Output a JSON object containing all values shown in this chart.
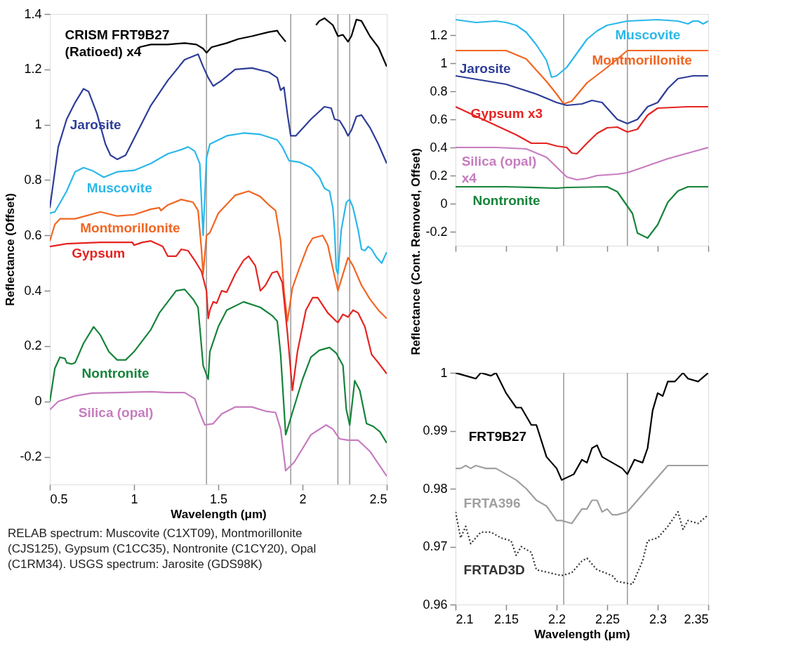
{
  "chart_data": [
    {
      "type": "line",
      "xlabel": "Wavelength (μm)",
      "ylabel": "Reflectance (Offset)",
      "xlim": [
        0.5,
        2.5
      ],
      "ylim": [
        -0.3,
        1.4
      ],
      "xticks": [
        0.5,
        1,
        1.5,
        2,
        2.5
      ],
      "yticks": [
        -0.2,
        0,
        0.2,
        0.4,
        0.6,
        0.8,
        1,
        1.2,
        1.4
      ],
      "grid": false,
      "legend": false,
      "marker": "none",
      "line_style": "solid",
      "ref_lines": [
        {
          "axis": "x",
          "value": 1.43,
          "color": "#999999"
        },
        {
          "axis": "x",
          "value": 1.93,
          "color": "#999999"
        },
        {
          "axis": "x",
          "value": 2.21,
          "color": "#999999"
        },
        {
          "axis": "x",
          "value": 2.28,
          "color": "#999999"
        }
      ],
      "annotations": [
        "RELAB spectrum: Muscovite (C1XT09), Montmorillonite (CJS125), Gypsum (C1CC35), Nontronite (C1CY20), Opal (C1RM34). USGS spectrum: Jarosite (GDS98K)"
      ],
      "series": [
        {
          "name": "CRISM FRT9B27 (Ratioed) x4",
          "color": "#000000",
          "x": [
            1.03,
            1.1,
            1.2,
            1.3,
            1.37,
            1.41,
            1.43,
            1.46,
            1.55,
            1.62,
            1.7,
            1.8,
            1.85,
            1.86,
            1.9,
            2.0,
            2.08,
            2.1,
            2.13,
            2.18,
            2.21,
            2.24,
            2.27,
            2.29,
            2.32,
            2.35,
            2.4,
            2.45,
            2.5
          ],
          "values": [
            1.28,
            1.29,
            1.29,
            1.295,
            1.29,
            1.275,
            1.26,
            1.28,
            1.295,
            1.31,
            1.32,
            1.335,
            1.34,
            1.33,
            1.3,
            null,
            1.36,
            1.375,
            1.385,
            1.36,
            1.32,
            1.325,
            1.3,
            1.32,
            1.38,
            1.375,
            1.32,
            1.28,
            1.21
          ]
        },
        {
          "name": "Jarosite",
          "color": "#2e3d98",
          "x": [
            0.5,
            0.55,
            0.6,
            0.65,
            0.7,
            0.73,
            0.78,
            0.83,
            0.86,
            0.9,
            0.95,
            1.0,
            1.1,
            1.2,
            1.3,
            1.38,
            1.41,
            1.44,
            1.47,
            1.52,
            1.6,
            1.7,
            1.8,
            1.85,
            1.87,
            1.89,
            1.91,
            1.93,
            1.96,
            2.05,
            2.13,
            2.17,
            2.19,
            2.22,
            2.25,
            2.27,
            2.29,
            2.32,
            2.35,
            2.4,
            2.45,
            2.5
          ],
          "values": [
            0.7,
            0.92,
            1.02,
            1.08,
            1.13,
            1.12,
            1.04,
            0.93,
            0.89,
            0.875,
            0.89,
            0.95,
            1.07,
            1.16,
            1.235,
            1.255,
            1.21,
            1.17,
            1.14,
            1.16,
            1.2,
            1.205,
            1.19,
            1.17,
            1.125,
            1.135,
            1.04,
            0.96,
            0.96,
            1.02,
            1.065,
            1.06,
            1.02,
            1.015,
            0.985,
            0.96,
            0.98,
            1.03,
            1.035,
            0.99,
            0.93,
            0.86
          ]
        },
        {
          "name": "Muscovite",
          "color": "#2bb8ea",
          "x": [
            0.5,
            0.53,
            0.6,
            0.65,
            0.7,
            0.75,
            0.82,
            0.9,
            1.0,
            1.1,
            1.2,
            1.28,
            1.32,
            1.36,
            1.39,
            1.41,
            1.43,
            1.45,
            1.55,
            1.65,
            1.75,
            1.85,
            1.88,
            1.92,
            1.98,
            2.05,
            2.1,
            2.13,
            2.16,
            2.18,
            2.19,
            2.2,
            2.21,
            2.23,
            2.26,
            2.28,
            2.3,
            2.33,
            2.35,
            2.37,
            2.39,
            2.41,
            2.44,
            2.47,
            2.5
          ],
          "values": [
            0.68,
            0.685,
            0.76,
            0.83,
            0.845,
            0.835,
            0.81,
            0.83,
            0.835,
            0.86,
            0.895,
            0.91,
            0.92,
            0.905,
            0.86,
            0.6,
            0.88,
            0.93,
            0.96,
            0.97,
            0.965,
            0.945,
            0.92,
            0.87,
            0.865,
            0.845,
            0.81,
            0.77,
            0.76,
            0.7,
            0.62,
            0.48,
            0.46,
            0.62,
            0.72,
            0.73,
            0.7,
            0.62,
            0.55,
            0.545,
            0.56,
            0.55,
            0.52,
            0.5,
            0.54
          ]
        },
        {
          "name": "Montmorillonite",
          "color": "#f26522",
          "x": [
            0.5,
            0.53,
            0.56,
            0.65,
            0.8,
            0.9,
            1.0,
            1.1,
            1.15,
            1.16,
            1.2,
            1.28,
            1.35,
            1.38,
            1.4,
            1.41,
            1.43,
            1.45,
            1.5,
            1.6,
            1.68,
            1.75,
            1.8,
            1.84,
            1.87,
            1.89,
            1.91,
            1.94,
            1.98,
            2.03,
            2.06,
            2.12,
            2.15,
            2.18,
            2.21,
            2.23,
            2.27,
            2.3,
            2.35,
            2.4,
            2.45,
            2.5
          ],
          "values": [
            0.58,
            0.64,
            0.66,
            0.66,
            0.685,
            0.67,
            0.675,
            0.695,
            0.7,
            0.69,
            0.71,
            0.73,
            0.72,
            0.69,
            0.55,
            0.46,
            0.6,
            0.61,
            0.68,
            0.745,
            0.76,
            0.74,
            0.71,
            0.69,
            0.58,
            0.4,
            0.29,
            0.41,
            0.48,
            0.56,
            0.59,
            0.6,
            0.565,
            0.48,
            0.4,
            0.44,
            0.52,
            0.49,
            0.42,
            0.37,
            0.33,
            0.3
          ]
        },
        {
          "name": "Gypsum",
          "color": "#e52421",
          "x": [
            0.5,
            0.6,
            0.8,
            0.9,
            0.99,
            1.0,
            1.05,
            1.1,
            1.17,
            1.2,
            1.25,
            1.28,
            1.32,
            1.36,
            1.4,
            1.43,
            1.44,
            1.45,
            1.47,
            1.49,
            1.52,
            1.55,
            1.6,
            1.65,
            1.68,
            1.72,
            1.75,
            1.78,
            1.82,
            1.85,
            1.88,
            1.91,
            1.94,
            1.97,
            2.02,
            2.06,
            2.09,
            2.15,
            2.2,
            2.21,
            2.24,
            2.27,
            2.3,
            2.33,
            2.37,
            2.41,
            2.45,
            2.5
          ],
          "values": [
            0.56,
            0.57,
            0.575,
            0.575,
            0.575,
            0.565,
            0.575,
            0.58,
            0.56,
            0.525,
            0.525,
            0.55,
            0.545,
            0.51,
            0.47,
            0.4,
            0.3,
            0.33,
            0.36,
            0.355,
            0.4,
            0.395,
            0.46,
            0.51,
            0.525,
            0.49,
            0.4,
            0.42,
            0.465,
            0.47,
            0.43,
            0.25,
            0.04,
            0.18,
            0.33,
            0.375,
            0.375,
            0.32,
            0.29,
            0.285,
            0.315,
            0.305,
            0.33,
            0.32,
            0.27,
            0.17,
            0.14,
            0.1
          ]
        },
        {
          "name": "Nontronite",
          "color": "#16843b",
          "x": [
            0.5,
            0.53,
            0.56,
            0.59,
            0.6,
            0.63,
            0.65,
            0.7,
            0.76,
            0.8,
            0.85,
            0.9,
            0.95,
            1.0,
            1.1,
            1.15,
            1.2,
            1.25,
            1.3,
            1.35,
            1.38,
            1.4,
            1.41,
            1.44,
            1.45,
            1.5,
            1.55,
            1.65,
            1.75,
            1.82,
            1.85,
            1.87,
            1.9,
            1.94,
            2.0,
            2.05,
            2.1,
            2.16,
            2.2,
            2.24,
            2.26,
            2.28,
            2.31,
            2.34,
            2.38,
            2.42,
            2.46,
            2.5
          ],
          "values": [
            0.0,
            0.12,
            0.16,
            0.155,
            0.14,
            0.135,
            0.14,
            0.21,
            0.27,
            0.24,
            0.18,
            0.15,
            0.15,
            0.18,
            0.26,
            0.32,
            0.36,
            0.4,
            0.405,
            0.37,
            0.34,
            0.2,
            0.13,
            0.08,
            0.18,
            0.27,
            0.33,
            0.36,
            0.34,
            0.31,
            0.29,
            0.17,
            -0.12,
            -0.04,
            0.08,
            0.16,
            0.185,
            0.195,
            0.175,
            0.13,
            -0.03,
            -0.085,
            0.075,
            0.04,
            -0.08,
            -0.09,
            -0.11,
            -0.15
          ]
        },
        {
          "name": "Silica (opal)",
          "color": "#c77cbf",
          "x": [
            0.5,
            0.55,
            0.65,
            0.75,
            0.9,
            1.1,
            1.2,
            1.3,
            1.36,
            1.39,
            1.42,
            1.47,
            1.52,
            1.6,
            1.7,
            1.78,
            1.84,
            1.87,
            1.9,
            1.95,
            2.05,
            2.14,
            2.18,
            2.22,
            2.27,
            2.33,
            2.4,
            2.5
          ],
          "values": [
            -0.03,
            0.0,
            0.02,
            0.03,
            0.032,
            0.035,
            0.032,
            0.032,
            0.01,
            -0.04,
            -0.085,
            -0.08,
            -0.045,
            -0.02,
            -0.02,
            -0.035,
            -0.04,
            -0.1,
            -0.25,
            -0.22,
            -0.12,
            -0.085,
            -0.1,
            -0.135,
            -0.14,
            -0.14,
            -0.18,
            -0.27
          ]
        }
      ]
    },
    {
      "type": "line",
      "ylabel": "Reflectance (Cont. Removed, Offset)",
      "xlim": [
        2.1,
        2.35
      ],
      "ylim": [
        -0.3,
        1.35
      ],
      "xticks": [
        2.1,
        2.15,
        2.2,
        2.25,
        2.3,
        2.35
      ],
      "yticks": [
        -0.2,
        0,
        0.2,
        0.4,
        0.6,
        0.8,
        1,
        1.2
      ],
      "tick_labels": "y",
      "grid": false,
      "legend": false,
      "marker": "none",
      "line_style": "solid",
      "ref_lines": [
        {
          "axis": "x",
          "value": 2.207,
          "color": "#999999"
        },
        {
          "axis": "x",
          "value": 2.27,
          "color": "#999999"
        }
      ],
      "series": [
        {
          "name": "Muscovite",
          "color": "#2bb8ea",
          "x": [
            2.1,
            2.12,
            2.14,
            2.15,
            2.16,
            2.17,
            2.18,
            2.19,
            2.195,
            2.2,
            2.21,
            2.22,
            2.23,
            2.24,
            2.25,
            2.27,
            2.3,
            2.32,
            2.33,
            2.335,
            2.34,
            2.345,
            2.35
          ],
          "values": [
            1.31,
            1.29,
            1.3,
            1.29,
            1.27,
            1.22,
            1.13,
            1.02,
            0.9,
            0.91,
            0.97,
            1.07,
            1.17,
            1.23,
            1.27,
            1.3,
            1.31,
            1.3,
            1.28,
            1.3,
            1.3,
            1.28,
            1.3
          ]
        },
        {
          "name": "Montmorillonite",
          "color": "#f26522",
          "x": [
            2.1,
            2.15,
            2.17,
            2.19,
            2.2,
            2.207,
            2.215,
            2.23,
            2.25,
            2.27,
            2.3,
            2.35
          ],
          "values": [
            1.09,
            1.09,
            1.03,
            0.87,
            0.78,
            0.71,
            0.73,
            0.86,
            0.97,
            1.09,
            1.09,
            1.09
          ]
        },
        {
          "name": "Jarosite",
          "color": "#2e3d98",
          "x": [
            2.1,
            2.15,
            2.18,
            2.2,
            2.21,
            2.225,
            2.235,
            2.245,
            2.26,
            2.27,
            2.28,
            2.29,
            2.3,
            2.31,
            2.32,
            2.335,
            2.35
          ],
          "values": [
            0.91,
            0.85,
            0.78,
            0.72,
            0.7,
            0.71,
            0.735,
            0.72,
            0.6,
            0.57,
            0.6,
            0.69,
            0.72,
            0.82,
            0.89,
            0.91,
            0.91
          ]
        },
        {
          "name": "Gypsum x3",
          "color": "#e52421",
          "x": [
            2.1,
            2.13,
            2.16,
            2.175,
            2.19,
            2.2,
            2.21,
            2.215,
            2.22,
            2.23,
            2.24,
            2.25,
            2.26,
            2.27,
            2.28,
            2.29,
            2.3,
            2.33,
            2.35
          ],
          "values": [
            0.69,
            0.59,
            0.49,
            0.43,
            0.43,
            0.41,
            0.4,
            0.36,
            0.355,
            0.43,
            0.5,
            0.54,
            0.545,
            0.51,
            0.53,
            0.63,
            0.68,
            0.69,
            0.69
          ]
        },
        {
          "name": "Silica (opal) x4",
          "color": "#c77cbf",
          "x": [
            2.1,
            2.14,
            2.17,
            2.19,
            2.2,
            2.21,
            2.22,
            2.23,
            2.24,
            2.26,
            2.27,
            2.29,
            2.31,
            2.33,
            2.35
          ],
          "values": [
            0.4,
            0.4,
            0.39,
            0.33,
            0.26,
            0.19,
            0.17,
            0.18,
            0.2,
            0.21,
            0.22,
            0.27,
            0.32,
            0.36,
            0.4
          ]
        },
        {
          "name": "Nontronite",
          "color": "#16843b",
          "x": [
            2.1,
            2.15,
            2.2,
            2.21,
            2.25,
            2.26,
            2.275,
            2.28,
            2.29,
            2.3,
            2.31,
            2.32,
            2.33,
            2.35
          ],
          "values": [
            0.12,
            0.12,
            0.11,
            0.115,
            0.12,
            0.085,
            -0.07,
            -0.21,
            -0.245,
            -0.15,
            0.01,
            0.09,
            0.12,
            0.12
          ]
        }
      ]
    },
    {
      "type": "line",
      "xlabel": "Wavelength (μm)",
      "xlim": [
        2.1,
        2.35
      ],
      "ylim": [
        0.96,
        1.0
      ],
      "xticks": [
        2.1,
        2.15,
        2.2,
        2.25,
        2.3,
        2.35
      ],
      "yticks": [
        0.96,
        0.97,
        0.98,
        0.99,
        1
      ],
      "grid": false,
      "legend": false,
      "marker": "none",
      "line_style": "solid",
      "ref_lines": [
        {
          "axis": "x",
          "value": 2.207,
          "color": "#999999"
        },
        {
          "axis": "x",
          "value": 2.27,
          "color": "#999999"
        }
      ],
      "series": [
        {
          "name": "FRT9B27",
          "color": "#000000",
          "x": [
            2.1,
            2.11,
            2.12,
            2.125,
            2.135,
            2.14,
            2.15,
            2.16,
            2.165,
            2.175,
            2.18,
            2.19,
            2.2,
            2.205,
            2.217,
            2.225,
            2.23,
            2.235,
            2.24,
            2.245,
            2.255,
            2.265,
            2.27,
            2.277,
            2.285,
            2.29,
            2.295,
            2.3,
            2.305,
            2.31,
            2.317,
            2.325,
            2.33,
            2.34,
            2.35
          ],
          "values": [
            1.0,
            0.9995,
            0.999,
            1.0,
            0.9995,
            1.0,
            0.9965,
            0.994,
            0.994,
            0.991,
            0.991,
            0.9855,
            0.9835,
            0.9815,
            0.9825,
            0.985,
            0.9845,
            0.987,
            0.9875,
            0.9855,
            0.9845,
            0.9835,
            0.9825,
            0.985,
            0.9845,
            0.987,
            0.9935,
            0.9965,
            0.996,
            0.9985,
            0.9985,
            1.0,
            0.999,
            0.9985,
            1.0
          ]
        },
        {
          "name": "FRTA396",
          "color": "#a0a0a0",
          "x": [
            2.1,
            2.105,
            2.11,
            2.115,
            2.12,
            2.13,
            2.14,
            2.15,
            2.16,
            2.17,
            2.18,
            2.19,
            2.2,
            2.205,
            2.215,
            2.225,
            2.23,
            2.235,
            2.24,
            2.245,
            2.25,
            2.255,
            2.26,
            2.27,
            2.28,
            2.29,
            2.3,
            2.31,
            2.32,
            2.33,
            2.35
          ],
          "values": [
            0.9835,
            0.9835,
            0.984,
            0.9835,
            0.984,
            0.9835,
            0.9835,
            0.9825,
            0.9815,
            0.98,
            0.978,
            0.977,
            0.9745,
            0.9745,
            0.974,
            0.9765,
            0.9765,
            0.978,
            0.978,
            0.976,
            0.9765,
            0.9755,
            0.9755,
            0.976,
            0.978,
            0.98,
            0.982,
            0.984,
            0.984,
            0.984,
            0.984
          ]
        },
        {
          "name": "FRTAD3D",
          "color": "#333333",
          "line_style": "dotted",
          "x": [
            2.1,
            2.105,
            2.11,
            2.115,
            2.125,
            2.135,
            2.145,
            2.155,
            2.16,
            2.165,
            2.175,
            2.18,
            2.205,
            2.215,
            2.225,
            2.23,
            2.24,
            2.255,
            2.26,
            2.275,
            2.285,
            2.29,
            2.3,
            2.31,
            2.32,
            2.325,
            2.33,
            2.34,
            2.35
          ],
          "values": [
            0.976,
            0.9715,
            0.9735,
            0.9705,
            0.9725,
            0.9725,
            0.9715,
            0.971,
            0.9685,
            0.97,
            0.969,
            0.966,
            0.965,
            0.9655,
            0.9675,
            0.968,
            0.966,
            0.965,
            0.964,
            0.9635,
            0.9675,
            0.971,
            0.9715,
            0.9735,
            0.976,
            0.973,
            0.9745,
            0.974,
            0.9755
          ]
        }
      ]
    }
  ]
}
